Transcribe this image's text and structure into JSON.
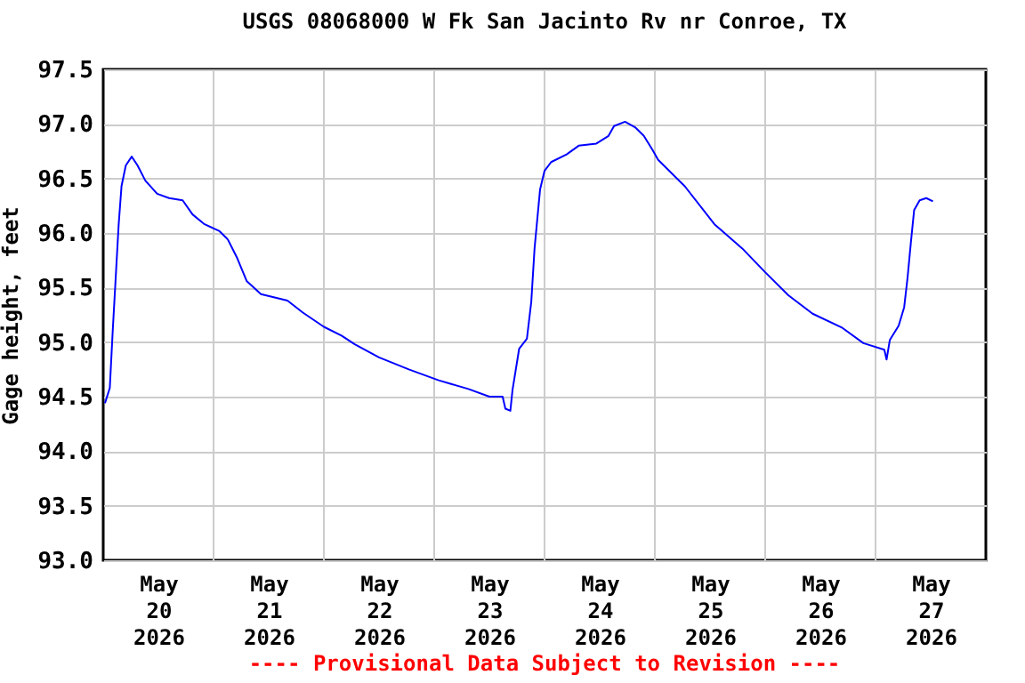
{
  "chart_data": {
    "type": "line",
    "title": "USGS 08068000 W Fk San Jacinto Rv nr Conroe, TX",
    "ylabel": "Gage height, feet",
    "annotations": [
      "---- Provisional Data Subject to Revision ----"
    ],
    "x": [
      "2026-05-20T00:23",
      "2026-05-20T01:26",
      "2026-05-20T02:04",
      "2026-05-20T02:43",
      "2026-05-20T03:22",
      "2026-05-20T03:59",
      "2026-05-20T04:55",
      "2026-05-20T06:12",
      "2026-05-20T07:28",
      "2026-05-20T09:10",
      "2026-05-20T11:44",
      "2026-05-20T14:20",
      "2026-05-20T17:17",
      "2026-05-20T19:26",
      "2026-05-20T22:03",
      "2026-05-21T01:12",
      "2026-05-21T03:07",
      "2026-05-21T05:02",
      "2026-05-21T07:12",
      "2026-05-21T10:19",
      "2026-05-21T16:05",
      "2026-05-21T19:26",
      "2026-05-22T00:00",
      "2026-05-22T03:50",
      "2026-05-22T06:43",
      "2026-05-22T12:00",
      "2026-05-22T18:29",
      "2026-05-23T00:58",
      "2026-05-23T07:26",
      "2026-05-23T12:00",
      "2026-05-23T14:53",
      "2026-05-23T15:29",
      "2026-05-23T16:34",
      "2026-05-23T17:02",
      "2026-05-23T18:29",
      "2026-05-23T20:10",
      "2026-05-23T21:07",
      "2026-05-23T21:50",
      "2026-05-23T23:02",
      "2026-05-24T00:00",
      "2026-05-24T01:26",
      "2026-05-24T04:48",
      "2026-05-24T07:26",
      "2026-05-24T11:17",
      "2026-05-24T13:55",
      "2026-05-24T15:07",
      "2026-05-24T17:31",
      "2026-05-24T19:41",
      "2026-05-24T21:36",
      "2026-05-24T23:31",
      "2026-05-25T00:43",
      "2026-05-25T06:29",
      "2026-05-25T12:58",
      "2026-05-25T18:58",
      "2026-05-26T00:00",
      "2026-05-26T05:02",
      "2026-05-26T10:19",
      "2026-05-26T16:48",
      "2026-05-26T21:22",
      "2026-05-27T01:55",
      "2026-05-27T02:24",
      "2026-05-27T03:07",
      "2026-05-27T05:02",
      "2026-05-27T06:14",
      "2026-05-27T06:58",
      "2026-05-27T07:41",
      "2026-05-27T08:24",
      "2026-05-27T09:36",
      "2026-05-27T11:02",
      "2026-05-27T12:29"
    ],
    "series": [
      {
        "color": "#0000ff",
        "values": [
          94.44,
          94.58,
          95.1,
          95.59,
          96.08,
          96.43,
          96.62,
          96.7,
          96.62,
          96.48,
          96.36,
          96.32,
          96.3,
          96.17,
          96.08,
          96.02,
          95.94,
          95.78,
          95.56,
          95.44,
          95.38,
          95.27,
          95.14,
          95.06,
          94.98,
          94.86,
          94.75,
          94.65,
          94.57,
          94.5,
          94.5,
          94.39,
          94.37,
          94.56,
          94.94,
          95.03,
          95.37,
          95.86,
          96.4,
          96.57,
          96.65,
          96.72,
          96.8,
          96.82,
          96.89,
          96.98,
          97.02,
          96.97,
          96.89,
          96.76,
          96.67,
          96.43,
          96.08,
          95.86,
          95.64,
          95.43,
          95.26,
          95.13,
          94.99,
          94.93,
          94.84,
          95.02,
          95.15,
          95.32,
          95.59,
          95.91,
          96.21,
          96.3,
          96.32,
          96.29
        ]
      }
    ],
    "xlim": [
      "2026-05-20T00:00",
      "2026-05-28T00:00"
    ],
    "xticks": [
      {
        "value": "2026-05-20T12:00",
        "label": "May\n20\n2026"
      },
      {
        "value": "2026-05-21T00:00",
        "label": null
      },
      {
        "value": "2026-05-21T12:00",
        "label": "May\n21\n2026"
      },
      {
        "value": "2026-05-22T00:00",
        "label": null
      },
      {
        "value": "2026-05-22T12:00",
        "label": "May\n22\n2026"
      },
      {
        "value": "2026-05-23T00:00",
        "label": null
      },
      {
        "value": "2026-05-23T12:00",
        "label": "May\n23\n2026"
      },
      {
        "value": "2026-05-24T00:00",
        "label": null
      },
      {
        "value": "2026-05-24T12:00",
        "label": "May\n24\n2026"
      },
      {
        "value": "2026-05-25T00:00",
        "label": null
      },
      {
        "value": "2026-05-25T12:00",
        "label": "May\n25\n2026"
      },
      {
        "value": "2026-05-26T00:00",
        "label": null
      },
      {
        "value": "2026-05-26T12:00",
        "label": "May\n26\n2026"
      },
      {
        "value": "2026-05-27T00:00",
        "label": null
      },
      {
        "value": "2026-05-27T12:00",
        "label": "May\n27\n2026"
      }
    ],
    "ylim": [
      93.0,
      97.5
    ],
    "yticks": [
      {
        "value": 93,
        "label": "93.0"
      },
      {
        "value": 93.5,
        "label": "93.5"
      },
      {
        "value": 94,
        "label": "94.0"
      },
      {
        "value": 94.5,
        "label": "94.5"
      },
      {
        "value": 95,
        "label": "95.0"
      },
      {
        "value": 95.5,
        "label": "95.5"
      },
      {
        "value": 96,
        "label": "96.0"
      },
      {
        "value": 96.5,
        "label": "96.5"
      },
      {
        "value": 97,
        "label": "97.0"
      },
      {
        "value": 97.5,
        "label": "97.5"
      }
    ],
    "grid": true
  }
}
